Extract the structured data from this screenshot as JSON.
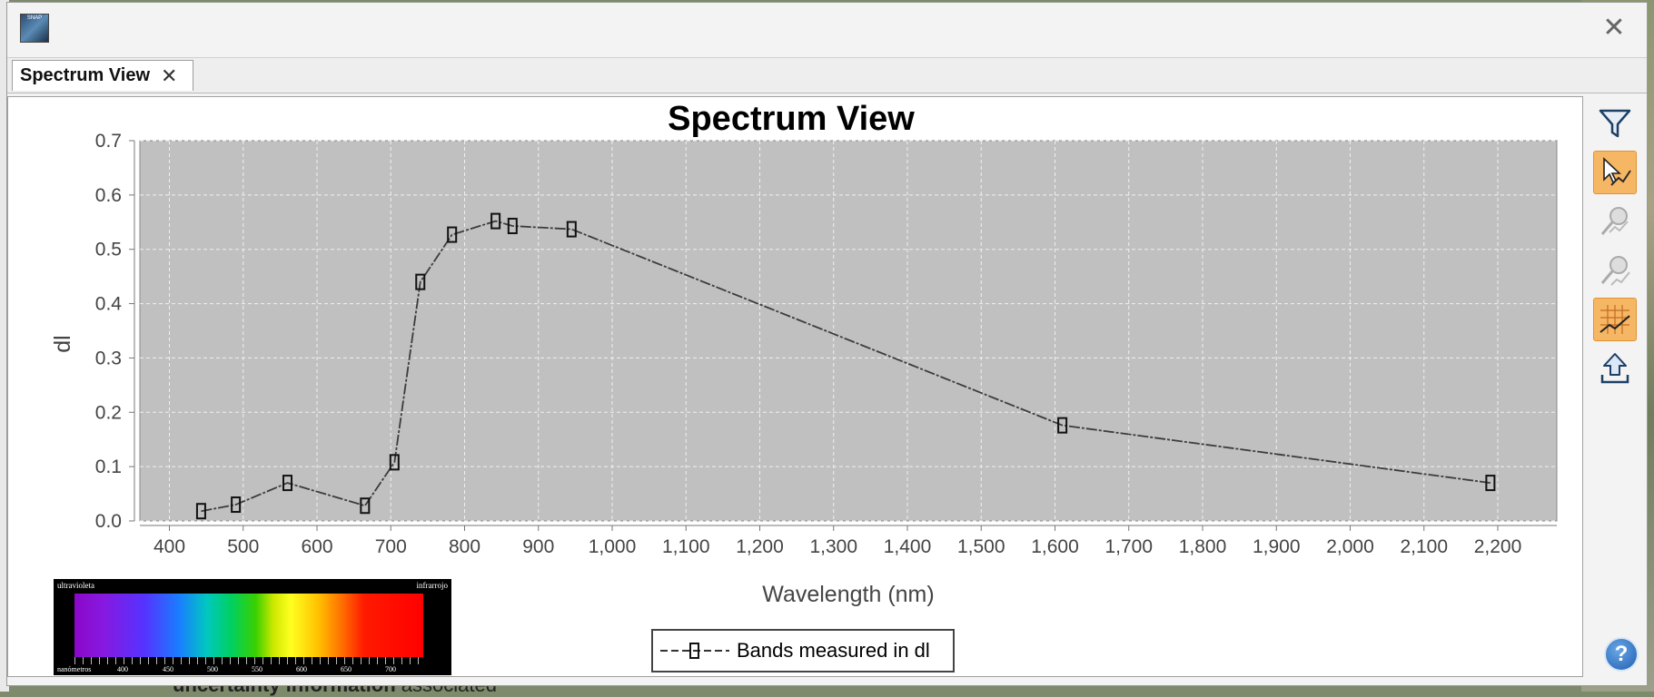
{
  "window": {
    "app_icon_text": "SNAP",
    "close_glyph": "✕"
  },
  "tabs": [
    {
      "label": "Spectrum View",
      "close_glyph": "✕",
      "active": true
    }
  ],
  "toolbar": {
    "tools": [
      {
        "icon": "filter-icon",
        "active": false
      },
      {
        "icon": "select-spectra-icon",
        "active": true
      },
      {
        "icon": "pin-icon",
        "active": false,
        "disabled": true
      },
      {
        "icon": "pin-all-icon",
        "active": false,
        "disabled": true
      },
      {
        "icon": "grid-chart-icon",
        "active": true
      },
      {
        "icon": "export-icon",
        "active": false
      }
    ],
    "help_glyph": "?"
  },
  "background": {
    "bottom_text_bold": "uncertainty information",
    "bottom_text_rest": " associated"
  },
  "spectrum_image": {
    "top_left": "ultravioleta",
    "top_right": "infrarrojo",
    "bottom_labels": [
      "nanómetros",
      "400",
      "450",
      "500",
      "550",
      "600",
      "650",
      "700"
    ]
  },
  "colors": {
    "plot_bg": "#c0c0c0",
    "line": "#3c3c3c",
    "active_tool": "#f6b764"
  },
  "chart_data": {
    "type": "line",
    "title": "Spectrum View",
    "xlabel": "Wavelength (nm)",
    "ylabel": "dl",
    "xlim": [
      360,
      2280
    ],
    "ylim": [
      0,
      0.7
    ],
    "x_ticks": [
      400,
      500,
      600,
      700,
      800,
      900,
      1000,
      1100,
      1200,
      1300,
      1400,
      1500,
      1600,
      1700,
      1800,
      1900,
      2000,
      2100,
      2200
    ],
    "x_tick_labels": [
      "400",
      "500",
      "600",
      "700",
      "800",
      "900",
      "1,000",
      "1,100",
      "1,200",
      "1,300",
      "1,400",
      "1,500",
      "1,600",
      "1,700",
      "1,800",
      "1,900",
      "2,000",
      "2,100",
      "2,200"
    ],
    "y_ticks": [
      0.0,
      0.1,
      0.2,
      0.3,
      0.4,
      0.5,
      0.6,
      0.7
    ],
    "y_tick_labels": [
      "0.0",
      "0.1",
      "0.2",
      "0.3",
      "0.4",
      "0.5",
      "0.6",
      "0.7"
    ],
    "grid": true,
    "legend_position": "bottom-center",
    "series": [
      {
        "name": "Bands measured in dl",
        "marker": "rectangle",
        "line_style": "dashed",
        "x": [
          443,
          490,
          560,
          665,
          705,
          740,
          783,
          842,
          865,
          945,
          1610,
          2190
        ],
        "y": [
          0.018,
          0.03,
          0.07,
          0.028,
          0.108,
          0.44,
          0.527,
          0.552,
          0.543,
          0.537,
          0.176,
          0.07
        ]
      }
    ]
  }
}
